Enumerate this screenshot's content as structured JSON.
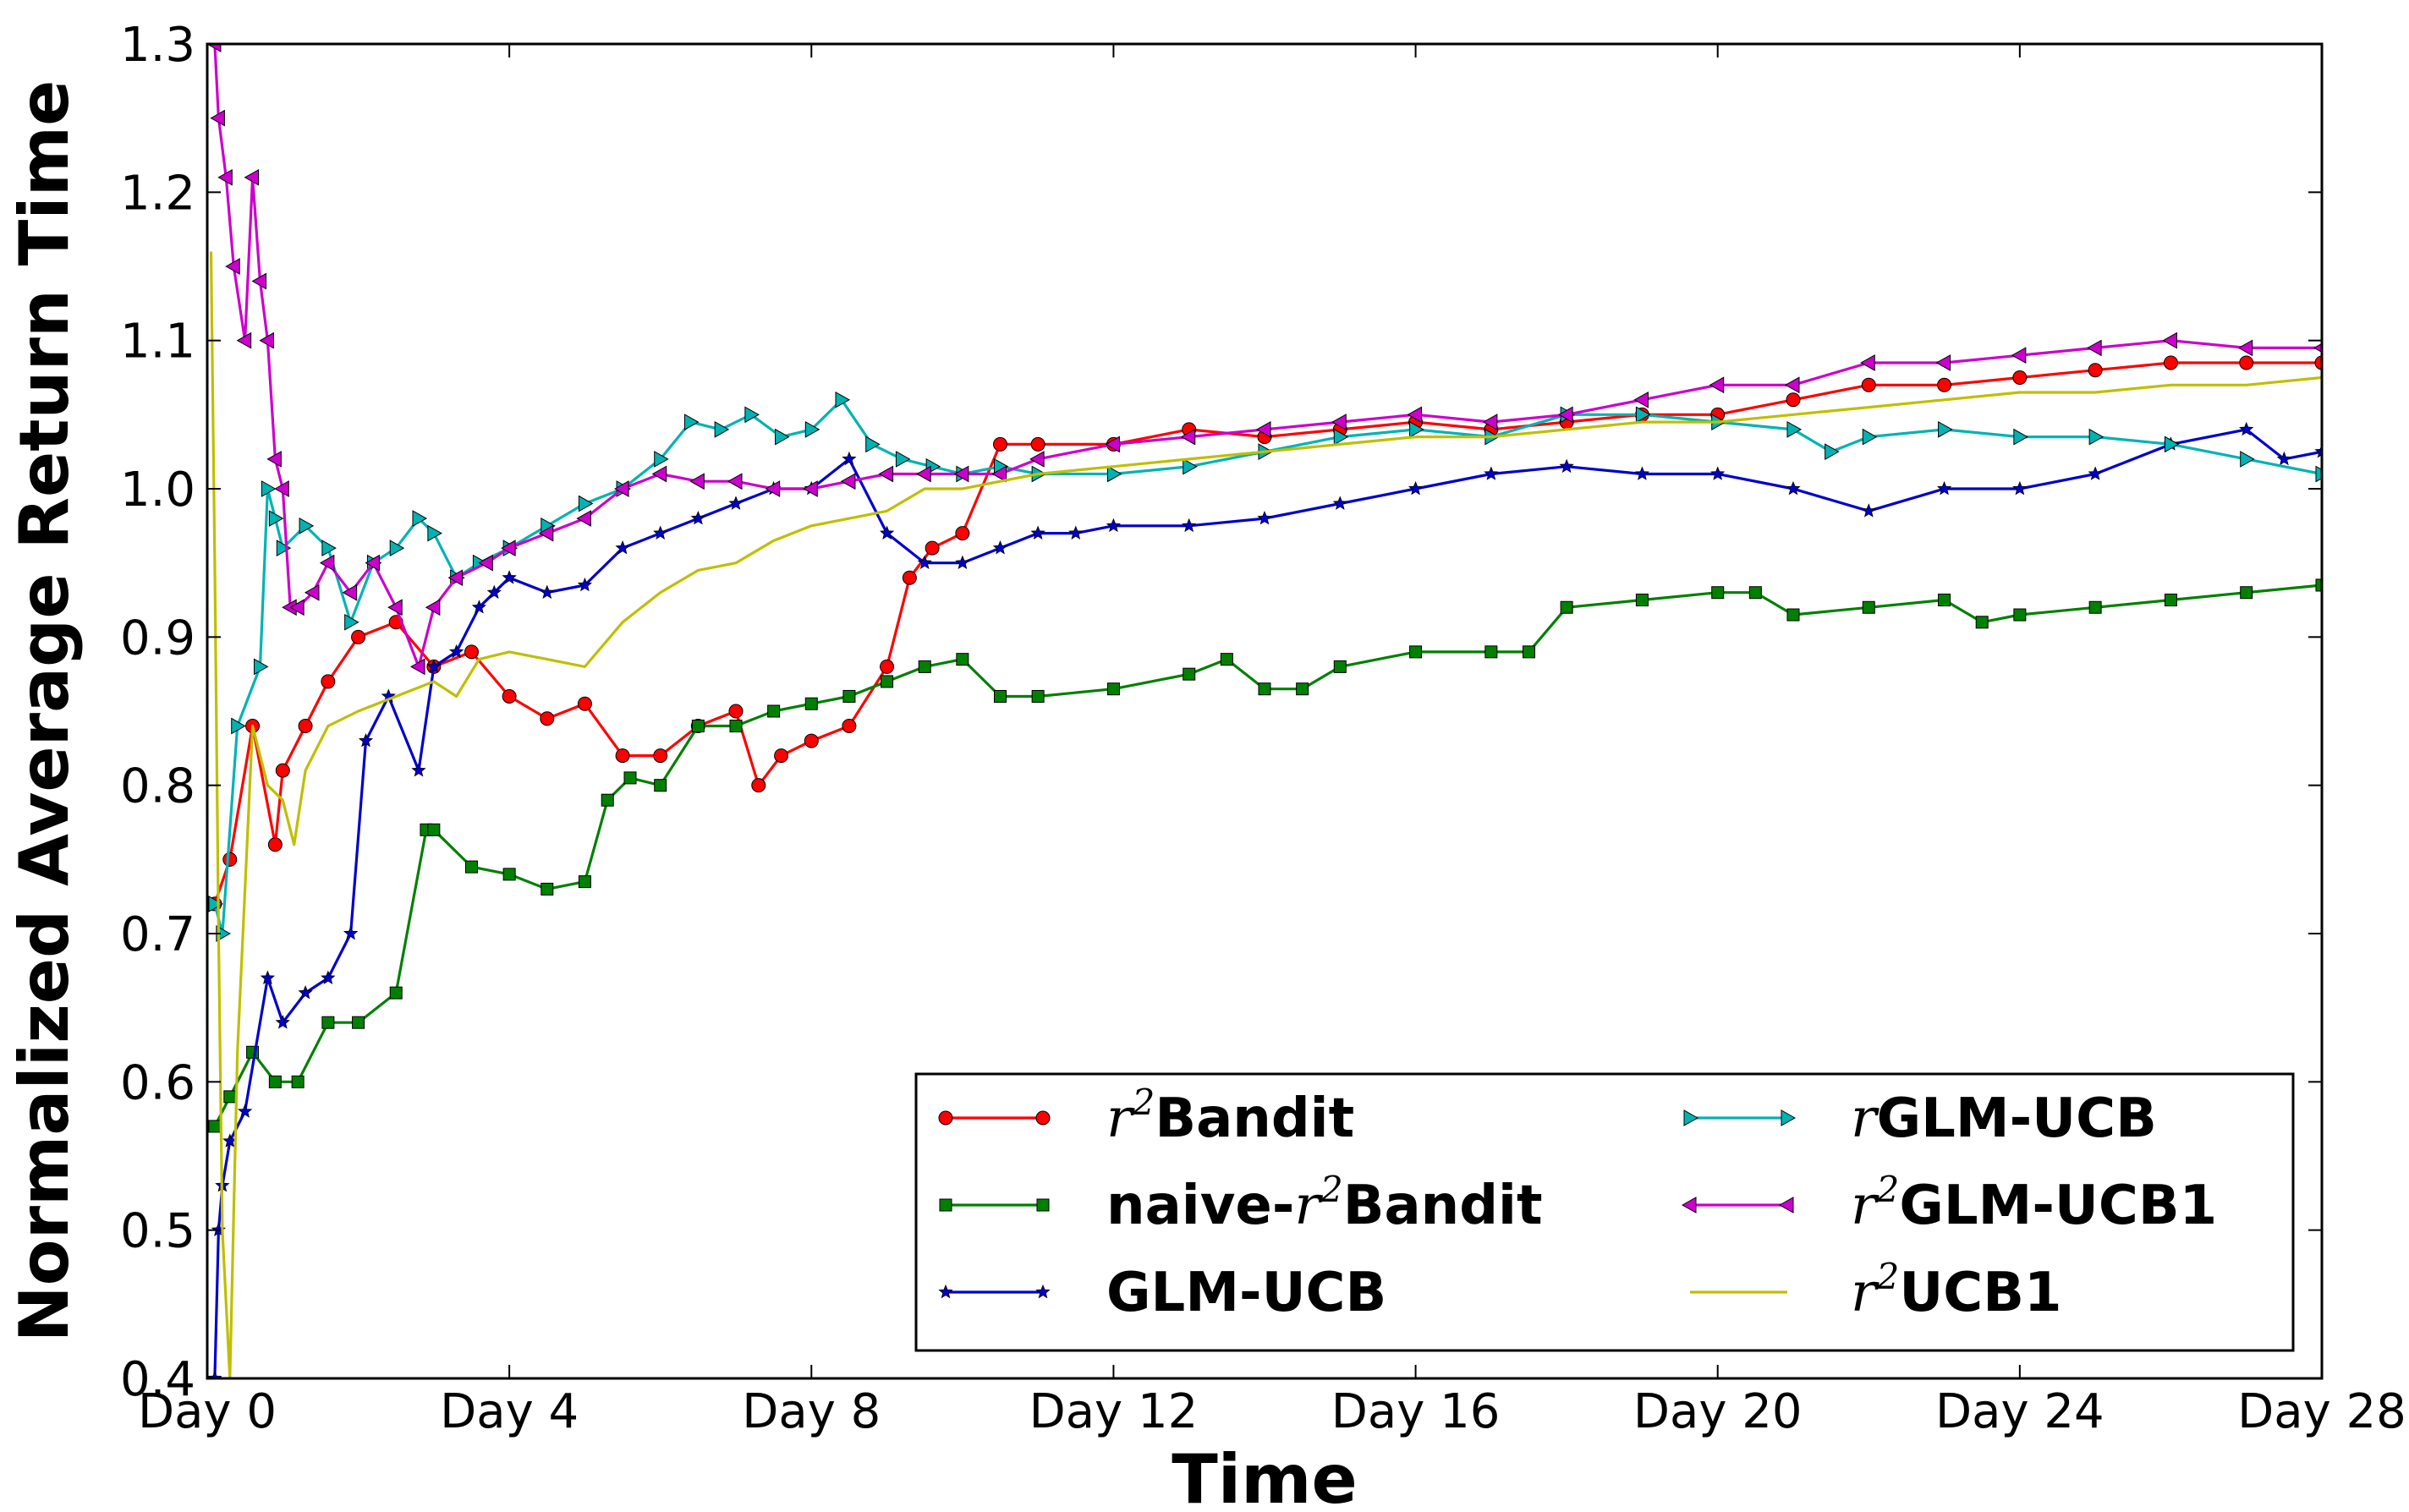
{
  "chart_data": {
    "type": "line",
    "title": "",
    "xlabel": "Time",
    "ylabel": "Normalized Average Return Time",
    "xlim": [
      0,
      28
    ],
    "ylim": [
      0.4,
      1.3
    ],
    "x_ticks": [
      {
        "value": 0,
        "label": "Day 0"
      },
      {
        "value": 4,
        "label": "Day 4"
      },
      {
        "value": 8,
        "label": "Day 8"
      },
      {
        "value": 12,
        "label": "Day 12"
      },
      {
        "value": 16,
        "label": "Day 16"
      },
      {
        "value": 20,
        "label": "Day 20"
      },
      {
        "value": 24,
        "label": "Day 24"
      },
      {
        "value": 28,
        "label": "Day 28"
      }
    ],
    "y_ticks": [
      {
        "value": 0.4,
        "label": "0.4"
      },
      {
        "value": 0.5,
        "label": "0.5"
      },
      {
        "value": 0.6,
        "label": "0.6"
      },
      {
        "value": 0.7,
        "label": "0.7"
      },
      {
        "value": 0.8,
        "label": "0.8"
      },
      {
        "value": 0.9,
        "label": "0.9"
      },
      {
        "value": 1.0,
        "label": "1.0"
      },
      {
        "value": 1.1,
        "label": "1.1"
      },
      {
        "value": 1.2,
        "label": "1.2"
      },
      {
        "value": 1.3,
        "label": "1.3"
      }
    ],
    "grid": false,
    "legend_position": "lower-right",
    "series": [
      {
        "name": "r2Bandit",
        "math": "r",
        "sup": "2",
        "text": "Bandit",
        "color": "#ff0000",
        "marker": "circle",
        "x": [
          0.1,
          0.3,
          0.6,
          0.9,
          1.0,
          1.3,
          1.6,
          2.0,
          2.5,
          3.0,
          3.5,
          4.0,
          4.5,
          5.0,
          5.5,
          6.0,
          6.5,
          7.0,
          7.3,
          7.6,
          8.0,
          8.5,
          9.0,
          9.3,
          9.6,
          10.0,
          10.5,
          11.0,
          12.0,
          13.0,
          14.0,
          15.0,
          16.0,
          17.0,
          18.0,
          19.0,
          20.0,
          21.0,
          22.0,
          23.0,
          24.0,
          25.0,
          26.0,
          27.0,
          28.0
        ],
        "y": [
          0.72,
          0.75,
          0.84,
          0.76,
          0.81,
          0.84,
          0.87,
          0.9,
          0.91,
          0.88,
          0.89,
          0.86,
          0.845,
          0.855,
          0.82,
          0.82,
          0.84,
          0.85,
          0.8,
          0.82,
          0.83,
          0.84,
          0.88,
          0.94,
          0.96,
          0.97,
          1.03,
          1.03,
          1.03,
          1.04,
          1.035,
          1.04,
          1.045,
          1.04,
          1.045,
          1.05,
          1.05,
          1.06,
          1.07,
          1.07,
          1.075,
          1.08,
          1.085,
          1.085,
          1.085
        ]
      },
      {
        "name": "naive-r2Bandit",
        "prefix": "naive-",
        "math": "r",
        "sup": "2",
        "text": "Bandit",
        "color": "#008000",
        "marker": "square",
        "x": [
          0.1,
          0.3,
          0.6,
          0.9,
          1.2,
          1.6,
          2.0,
          2.5,
          2.9,
          3.0,
          3.5,
          4.0,
          4.5,
          5.0,
          5.3,
          5.6,
          6.0,
          6.5,
          7.0,
          7.5,
          8.0,
          8.5,
          9.0,
          9.5,
          10.0,
          10.5,
          11.0,
          12.0,
          13.0,
          13.5,
          14.0,
          14.5,
          15.0,
          16.0,
          17.0,
          17.5,
          18.0,
          19.0,
          20.0,
          20.5,
          21.0,
          22.0,
          23.0,
          23.5,
          24.0,
          25.0,
          26.0,
          27.0,
          28.0
        ],
        "y": [
          0.57,
          0.59,
          0.62,
          0.6,
          0.6,
          0.64,
          0.64,
          0.66,
          0.77,
          0.77,
          0.745,
          0.74,
          0.73,
          0.735,
          0.79,
          0.805,
          0.8,
          0.84,
          0.84,
          0.85,
          0.855,
          0.86,
          0.87,
          0.88,
          0.885,
          0.86,
          0.86,
          0.865,
          0.875,
          0.885,
          0.865,
          0.865,
          0.88,
          0.89,
          0.89,
          0.89,
          0.92,
          0.925,
          0.93,
          0.93,
          0.915,
          0.92,
          0.925,
          0.91,
          0.915,
          0.92,
          0.925,
          0.93,
          0.935
        ]
      },
      {
        "name": "GLM-UCB",
        "text": "GLM-UCB",
        "color": "#0000cc",
        "marker": "star",
        "x": [
          0.1,
          0.15,
          0.2,
          0.3,
          0.5,
          0.8,
          1.0,
          1.3,
          1.6,
          1.9,
          2.1,
          2.4,
          2.8,
          3.0,
          3.3,
          3.6,
          3.8,
          4.0,
          4.5,
          5.0,
          5.5,
          6.0,
          6.5,
          7.0,
          7.5,
          8.0,
          8.5,
          9.0,
          9.5,
          10.0,
          10.5,
          11.0,
          11.5,
          12.0,
          13.0,
          14.0,
          15.0,
          16.0,
          17.0,
          18.0,
          19.0,
          20.0,
          21.0,
          22.0,
          23.0,
          24.0,
          25.0,
          26.0,
          27.0,
          27.5,
          28.0
        ],
        "y": [
          0.4,
          0.5,
          0.53,
          0.56,
          0.58,
          0.67,
          0.64,
          0.66,
          0.67,
          0.7,
          0.83,
          0.86,
          0.81,
          0.88,
          0.89,
          0.92,
          0.93,
          0.94,
          0.93,
          0.935,
          0.96,
          0.97,
          0.98,
          0.99,
          1.0,
          1.0,
          1.02,
          0.97,
          0.95,
          0.95,
          0.96,
          0.97,
          0.97,
          0.975,
          0.975,
          0.98,
          0.99,
          1.0,
          1.01,
          1.015,
          1.01,
          1.01,
          1.0,
          0.985,
          1.0,
          1.0,
          1.01,
          1.03,
          1.04,
          1.02,
          1.025
        ]
      },
      {
        "name": "rGLM-UCB",
        "math": "r",
        "text": "GLM-UCB",
        "color": "#00b3b3",
        "marker": "triangle-right",
        "x": [
          0.1,
          0.2,
          0.4,
          0.7,
          0.8,
          0.9,
          1.0,
          1.3,
          1.6,
          1.9,
          2.2,
          2.5,
          2.8,
          3.0,
          3.3,
          3.6,
          4.0,
          4.5,
          5.0,
          5.5,
          6.0,
          6.4,
          6.8,
          7.2,
          7.6,
          8.0,
          8.4,
          8.8,
          9.2,
          9.6,
          10.0,
          10.5,
          11.0,
          12.0,
          13.0,
          14.0,
          15.0,
          16.0,
          17.0,
          18.0,
          19.0,
          20.0,
          21.0,
          21.5,
          22.0,
          23.0,
          24.0,
          25.0,
          26.0,
          27.0,
          28.0
        ],
        "y": [
          0.72,
          0.7,
          0.84,
          0.88,
          1.0,
          0.98,
          0.96,
          0.975,
          0.96,
          0.91,
          0.95,
          0.96,
          0.98,
          0.97,
          0.94,
          0.95,
          0.96,
          0.975,
          0.99,
          1.0,
          1.02,
          1.045,
          1.04,
          1.05,
          1.035,
          1.04,
          1.06,
          1.03,
          1.02,
          1.015,
          1.01,
          1.015,
          1.01,
          1.01,
          1.015,
          1.025,
          1.035,
          1.04,
          1.035,
          1.05,
          1.05,
          1.045,
          1.04,
          1.025,
          1.035,
          1.04,
          1.035,
          1.035,
          1.03,
          1.02,
          1.01
        ]
      },
      {
        "name": "r2GLM-UCB1",
        "math": "r",
        "sup": "2",
        "text": "GLM-UCB1",
        "color": "#cc00cc",
        "marker": "triangle-left",
        "x": [
          0.1,
          0.15,
          0.25,
          0.35,
          0.5,
          0.6,
          0.7,
          0.8,
          0.9,
          1.0,
          1.1,
          1.2,
          1.4,
          1.6,
          1.9,
          2.2,
          2.5,
          2.8,
          3.0,
          3.3,
          3.7,
          4.0,
          4.5,
          5.0,
          5.5,
          6.0,
          6.5,
          7.0,
          7.5,
          8.0,
          8.5,
          9.0,
          9.5,
          10.0,
          10.5,
          11.0,
          12.0,
          13.0,
          14.0,
          15.0,
          16.0,
          17.0,
          18.0,
          19.0,
          20.0,
          21.0,
          22.0,
          23.0,
          24.0,
          25.0,
          26.0,
          27.0,
          28.0
        ],
        "y": [
          1.3,
          1.25,
          1.21,
          1.15,
          1.1,
          1.21,
          1.14,
          1.1,
          1.02,
          1.0,
          0.92,
          0.92,
          0.93,
          0.95,
          0.93,
          0.95,
          0.92,
          0.88,
          0.92,
          0.94,
          0.95,
          0.96,
          0.97,
          0.98,
          1.0,
          1.01,
          1.005,
          1.005,
          1.0,
          1.0,
          1.005,
          1.01,
          1.01,
          1.01,
          1.01,
          1.02,
          1.03,
          1.035,
          1.04,
          1.045,
          1.05,
          1.045,
          1.05,
          1.06,
          1.07,
          1.07,
          1.085,
          1.085,
          1.09,
          1.095,
          1.1,
          1.095,
          1.095
        ]
      },
      {
        "name": "r2UCB1",
        "math": "r",
        "sup": "2",
        "text": "UCB1",
        "color": "#bfbf00",
        "marker": "none",
        "x": [
          0.05,
          0.1,
          0.15,
          0.2,
          0.3,
          0.4,
          0.6,
          0.8,
          1.0,
          1.15,
          1.3,
          1.6,
          2.0,
          2.5,
          3.0,
          3.3,
          3.6,
          4.0,
          4.5,
          5.0,
          5.5,
          6.0,
          6.5,
          7.0,
          7.5,
          8.0,
          8.5,
          9.0,
          9.5,
          10.0,
          10.5,
          11.0,
          12.0,
          13.0,
          14.0,
          15.0,
          16.0,
          17.0,
          18.0,
          19.0,
          20.0,
          21.0,
          22.0,
          23.0,
          24.0,
          25.0,
          26.0,
          27.0,
          28.0
        ],
        "y": [
          1.16,
          0.95,
          0.7,
          0.5,
          0.4,
          0.62,
          0.84,
          0.8,
          0.79,
          0.76,
          0.81,
          0.84,
          0.85,
          0.86,
          0.87,
          0.86,
          0.885,
          0.89,
          0.885,
          0.88,
          0.91,
          0.93,
          0.945,
          0.95,
          0.965,
          0.975,
          0.98,
          0.985,
          1.0,
          1.0,
          1.005,
          1.01,
          1.015,
          1.02,
          1.025,
          1.03,
          1.035,
          1.035,
          1.04,
          1.045,
          1.045,
          1.05,
          1.055,
          1.06,
          1.065,
          1.065,
          1.07,
          1.07,
          1.075
        ]
      }
    ]
  }
}
